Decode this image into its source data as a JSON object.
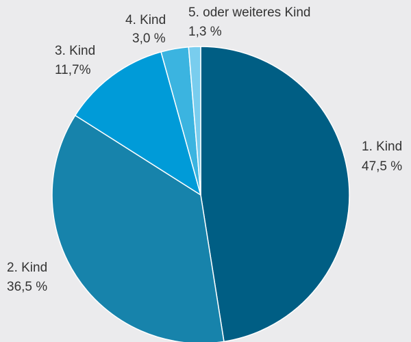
{
  "chart_data": {
    "type": "pie",
    "title": "",
    "start_angle_deg": 0,
    "direction": "clockwise",
    "slices": [
      {
        "label": "1. Kind",
        "value": 47.5,
        "value_text": "47,5 %",
        "color": "#005e84"
      },
      {
        "label": "2. Kind",
        "value": 36.5,
        "value_text": "36,5 %",
        "color": "#1783ab"
      },
      {
        "label": "3. Kind",
        "value": 11.7,
        "value_text": "11,7%",
        "color": "#009bd8"
      },
      {
        "label": "4. Kind",
        "value": 3.0,
        "value_text": "3,0 %",
        "color": "#3bb4e0"
      },
      {
        "label": "5. oder weiteres Kind",
        "value": 1.3,
        "value_text": "1,3 %",
        "color": "#79cdee"
      }
    ]
  }
}
